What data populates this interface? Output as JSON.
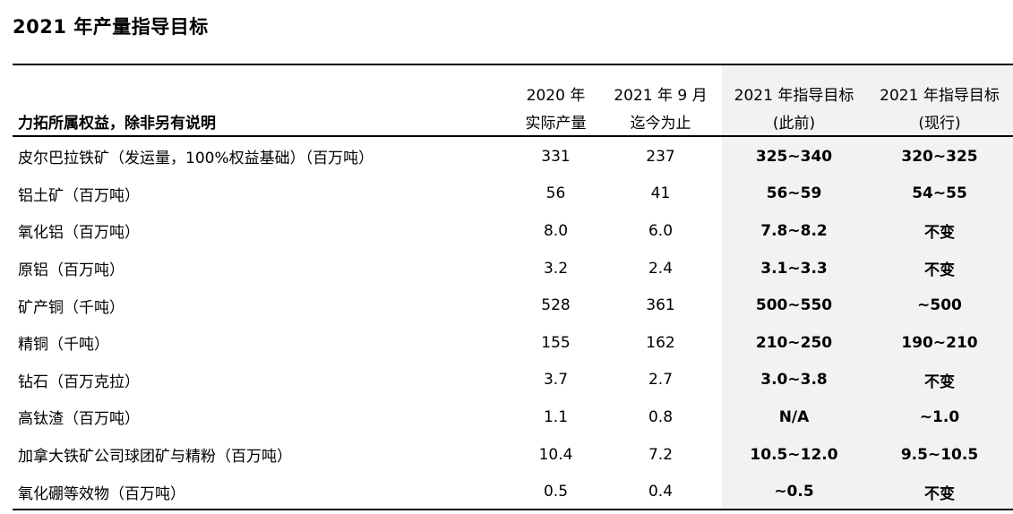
{
  "title": "2021 年产量指导目标",
  "header": {
    "row_label": "力拓所属权益，除非另有说明",
    "col_2020_line1": "2020 年",
    "col_2020_line2": "实际产量",
    "col_2021_line1": "2021 年 9 月",
    "col_2021_line2": "迄今为止",
    "col_prev_line1": "2021 年指导目标",
    "col_prev_line2": "(此前)",
    "col_curr_line1": "2021 年指导目标",
    "col_curr_line2": "(现行)"
  },
  "rows": [
    {
      "label": "皮尔巴拉铁矿（发运量，100%权益基础）（百万吨）",
      "actual_2020": "331",
      "ytd_2021": "237",
      "prev": "325~340",
      "curr": "320~325"
    },
    {
      "label": "铝土矿（百万吨）",
      "actual_2020": "56",
      "ytd_2021": "41",
      "prev": "56~59",
      "curr": "54~55"
    },
    {
      "label": "氧化铝（百万吨）",
      "actual_2020": "8.0",
      "ytd_2021": "6.0",
      "prev": "7.8~8.2",
      "curr": "不变"
    },
    {
      "label": "原铝（百万吨）",
      "actual_2020": "3.2",
      "ytd_2021": "2.4",
      "prev": "3.1~3.3",
      "curr": "不变"
    },
    {
      "label": "矿产铜（千吨）",
      "actual_2020": "528",
      "ytd_2021": "361",
      "prev": "500~550",
      "curr": "~500"
    },
    {
      "label": "精铜（千吨）",
      "actual_2020": "155",
      "ytd_2021": "162",
      "prev": "210~250",
      "curr": "190~210"
    },
    {
      "label": "钻石（百万克拉）",
      "actual_2020": "3.7",
      "ytd_2021": "2.7",
      "prev": "3.0~3.8",
      "curr": "不变"
    },
    {
      "label": "高钛渣（百万吨）",
      "actual_2020": "1.1",
      "ytd_2021": "0.8",
      "prev": "N/A",
      "curr": "~1.0"
    },
    {
      "label": "加拿大铁矿公司球团矿与精粉（百万吨）",
      "actual_2020": "10.4",
      "ytd_2021": "7.2",
      "prev": "10.5~12.0",
      "curr": "9.5~10.5"
    },
    {
      "label": "氧化硼等效物（百万吨）",
      "actual_2020": "0.5",
      "ytd_2021": "0.4",
      "prev": "~0.5",
      "curr": "不变"
    }
  ],
  "colors": {
    "guidance_column_bg": "#f2f2f2",
    "rule": "#000000"
  }
}
